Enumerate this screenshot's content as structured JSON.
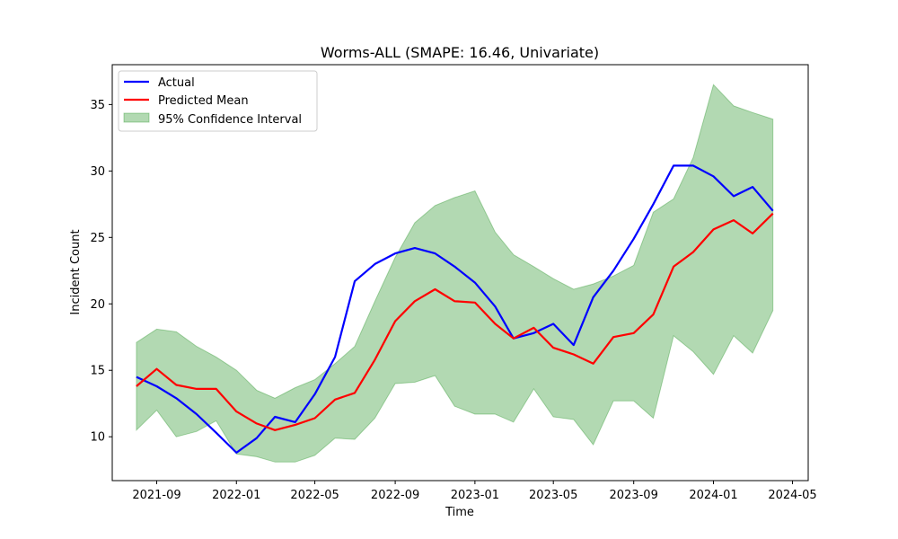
{
  "chart_data": {
    "type": "line",
    "title": "Worms-ALL (SMAPE: 16.46, Univariate)",
    "xlabel": "Time",
    "ylabel": "Incident Count",
    "x": [
      "2021-08",
      "2021-09",
      "2021-10",
      "2021-11",
      "2021-12",
      "2022-01",
      "2022-02",
      "2022-03",
      "2022-04",
      "2022-05",
      "2022-06",
      "2022-07",
      "2022-08",
      "2022-09",
      "2022-10",
      "2022-11",
      "2022-12",
      "2023-01",
      "2023-02",
      "2023-03",
      "2023-04",
      "2023-05",
      "2023-06",
      "2023-07",
      "2023-08",
      "2023-09",
      "2023-10",
      "2023-11",
      "2023-12",
      "2024-01",
      "2024-02",
      "2024-03",
      "2024-04"
    ],
    "series": [
      {
        "name": "Actual",
        "color": "#0000ff",
        "values": [
          14.5,
          13.8,
          12.9,
          11.7,
          10.3,
          8.8,
          9.9,
          11.5,
          11.1,
          13.2,
          16.0,
          21.7,
          23.0,
          23.8,
          24.2,
          23.8,
          22.8,
          21.6,
          19.8,
          17.4,
          17.8,
          18.5,
          16.9,
          20.5,
          22.5,
          24.9,
          27.5,
          30.4,
          30.4,
          29.6,
          28.1,
          28.8,
          27.0
        ]
      },
      {
        "name": "Predicted Mean",
        "color": "#ff0000",
        "values": [
          13.8,
          15.1,
          13.9,
          13.6,
          13.6,
          11.9,
          11.0,
          10.5,
          10.9,
          11.4,
          12.8,
          13.3,
          15.8,
          18.7,
          20.2,
          21.1,
          20.2,
          20.1,
          18.5,
          17.4,
          18.2,
          16.7,
          16.2,
          15.5,
          17.5,
          17.8,
          19.2,
          22.8,
          23.9,
          25.6,
          26.3,
          25.3,
          26.8
        ]
      }
    ],
    "band": {
      "name": "95% Confidence Interval",
      "color": "#008000",
      "lower": [
        10.5,
        12.0,
        10.0,
        10.4,
        11.2,
        8.7,
        8.5,
        8.1,
        8.1,
        8.6,
        9.9,
        9.8,
        11.4,
        14.0,
        14.1,
        14.6,
        12.3,
        11.7,
        11.7,
        11.1,
        13.6,
        11.5,
        11.3,
        9.4,
        12.7,
        12.7,
        11.4,
        17.6,
        16.4,
        14.7,
        17.6,
        16.3,
        19.5
      ],
      "upper": [
        17.1,
        18.1,
        17.9,
        16.8,
        16.0,
        15.0,
        13.5,
        12.9,
        13.7,
        14.3,
        15.5,
        16.8,
        20.2,
        23.5,
        26.1,
        27.4,
        28.0,
        28.5,
        25.4,
        23.7,
        22.8,
        21.9,
        21.1,
        21.5,
        22.1,
        22.9,
        26.9,
        27.9,
        31.0,
        36.5,
        34.9,
        34.4,
        33.9
      ]
    },
    "x_ticks": [
      "2021-09",
      "2022-01",
      "2022-05",
      "2022-09",
      "2023-01",
      "2023-05",
      "2023-09",
      "2024-01",
      "2024-05"
    ],
    "y_ticks": [
      10,
      15,
      20,
      25,
      30,
      35
    ],
    "xlim": [
      "2021-06-25",
      "2024-05-25"
    ],
    "ylim": [
      6.7,
      38.0
    ],
    "legend": "top-left",
    "grid": false
  }
}
